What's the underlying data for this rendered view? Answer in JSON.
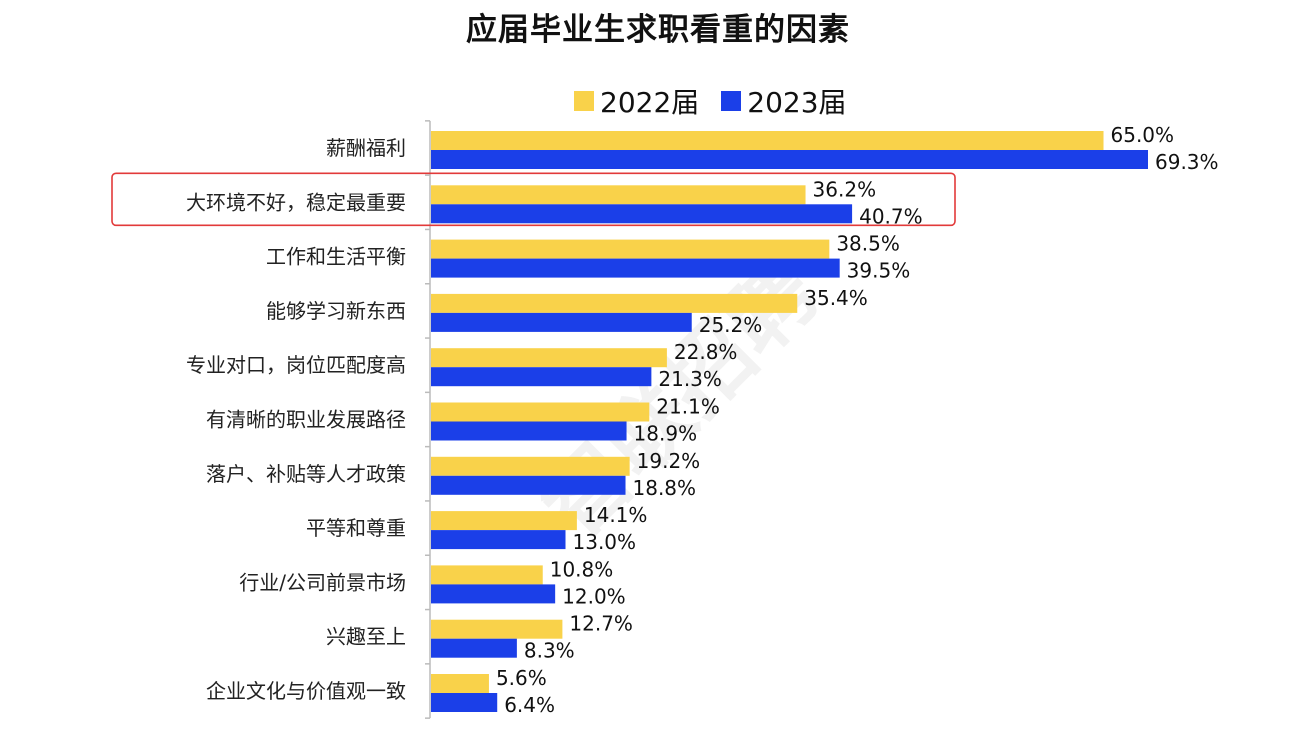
{
  "title": "应届毕业生求职看重的因素",
  "watermark": "智联招聘",
  "colors": {
    "series_2022": "#f9d24a",
    "series_2023": "#1b3fe8",
    "highlight": "#e23a3a",
    "axis": "#bbbbbb"
  },
  "chart_data": {
    "type": "bar",
    "orientation": "horizontal",
    "title": "应届毕业生求职看重的因素",
    "categories": [
      "薪酬福利",
      "大环境不好，稳定最重要",
      "工作和生活平衡",
      "能够学习新东西",
      "专业对口，岗位匹配度高",
      "有清晰的职业发展路径",
      "落户、补贴等人才政策",
      "平等和尊重",
      "行业/公司前景市场",
      "兴趣至上",
      "企业文化与价值观一致"
    ],
    "series": [
      {
        "name": "2022届",
        "values": [
          65.0,
          36.2,
          38.5,
          35.4,
          22.8,
          21.1,
          19.2,
          14.1,
          10.8,
          12.7,
          5.6
        ]
      },
      {
        "name": "2023届",
        "values": [
          69.3,
          40.7,
          39.5,
          25.2,
          21.3,
          18.9,
          18.8,
          13.0,
          12.0,
          8.3,
          6.4
        ]
      }
    ],
    "value_format": "percent_1dp",
    "highlighted_category": "大环境不好，稳定最重要",
    "legend": "top",
    "grid": false
  }
}
